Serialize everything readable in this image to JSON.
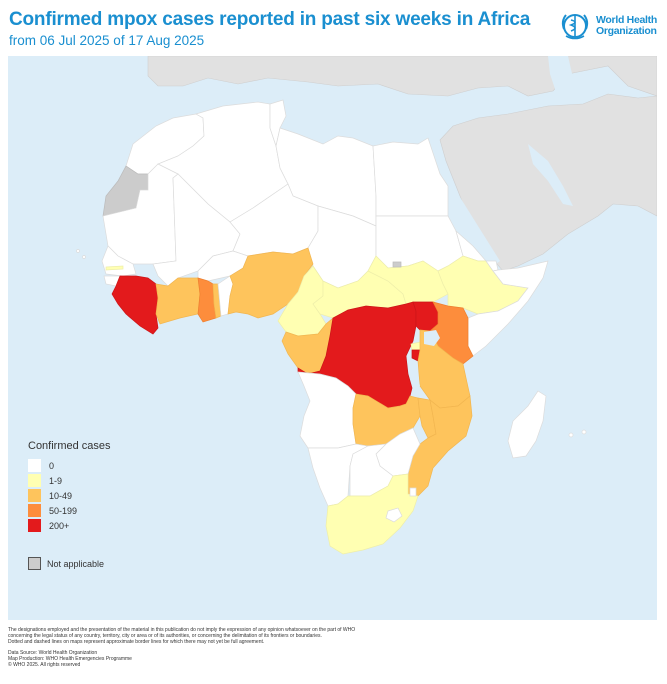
{
  "header": {
    "title": "Confirmed mpox cases reported in past six weeks in Africa",
    "subtitle": "from 06 Jul 2025 of 17 Aug 2025"
  },
  "logo": {
    "icon": "who-emblem-icon",
    "line1": "World Health",
    "line2": "Organization"
  },
  "colors": {
    "title": "#1a8fd0",
    "sea": "#dcedf8",
    "other_land": "#e1e1e1",
    "cat_0": "#ffffff",
    "cat_1_9": "#ffffb2",
    "cat_10_49": "#fec45c",
    "cat_50_199": "#fd8d3c",
    "cat_200_plus": "#e31a1c",
    "not_applicable": "#cccccc"
  },
  "legend": {
    "title": "Confirmed cases",
    "items": [
      {
        "label": "0",
        "color": "#ffffff"
      },
      {
        "label": "1-9",
        "color": "#ffffb2"
      },
      {
        "label": "10-49",
        "color": "#fec45c"
      },
      {
        "label": "50-199",
        "color": "#fd8d3c"
      },
      {
        "label": "200+",
        "color": "#e31a1c"
      }
    ],
    "not_applicable": "Not applicable"
  },
  "footer": {
    "disclaimer": [
      "The designations employed and the presentation of the material in this publication do not imply the expression of any opinion whatsoever on the part of WHO",
      "concerning the legal status of any country, territory, city or area or of its authorities, or concerning the delimitation of its frontiers or boundaries.",
      "Dotted and dashed lines on maps represent approximate border lines for which there may not yet be full agreement."
    ],
    "credits": [
      "Data Source: World Health Organization",
      "Map Production: WHO Health Emergencies Programme",
      "© WHO 2025. All rights reserved"
    ]
  }
}
